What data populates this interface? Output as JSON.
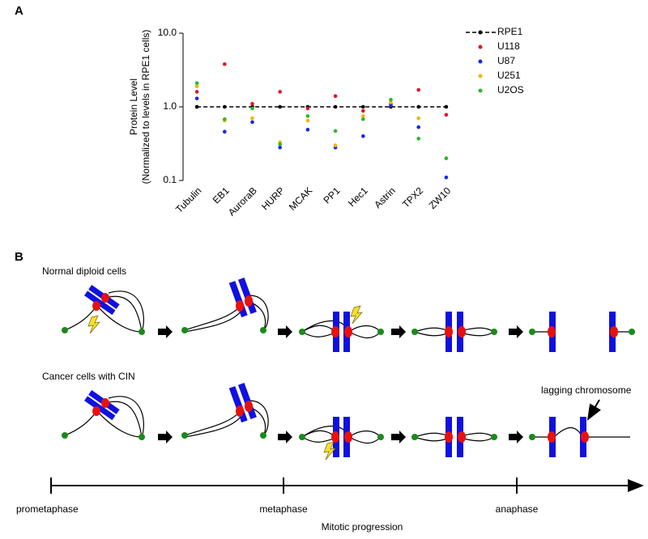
{
  "chart_data": {
    "type": "scatter",
    "panel_label": "A",
    "y_label": [
      "Protein Level",
      "(Normalized to levels in RPE1 cells)"
    ],
    "categories": [
      "Tubulin",
      "EB1",
      "AuroraB",
      "HURP",
      "MCAK",
      "PP1",
      "Hec1",
      "Astrin",
      "TPX2",
      "ZW10"
    ],
    "log_y": true,
    "ylim": [
      0.1,
      10
    ],
    "yticks": [
      0.1,
      {
        "value": 1,
        "label": "1.0"
      },
      {
        "value": 10,
        "label": "10.0"
      }
    ],
    "legend": "top-right",
    "series": [
      {
        "name": "RPE1",
        "color": "#000000",
        "style": "dashed-line",
        "values": [
          1,
          1,
          1,
          1,
          1,
          1,
          1,
          1,
          1,
          1
        ]
      },
      {
        "name": "U118",
        "color": "#e8141c",
        "values": [
          1.6,
          3.8,
          1.1,
          1.6,
          0.95,
          1.4,
          0.88,
          1.1,
          1.7,
          0.78
        ]
      },
      {
        "name": "U87",
        "color": "#1428e6",
        "values": [
          1.3,
          0.46,
          0.62,
          0.28,
          0.49,
          0.28,
          0.4,
          1.05,
          0.53,
          0.11
        ]
      },
      {
        "name": "U251",
        "color": "#f5b400",
        "values": [
          1.9,
          0.65,
          0.7,
          0.33,
          0.65,
          0.3,
          0.75,
          1.15,
          0.7,
          0.2
        ]
      },
      {
        "name": "U2OS",
        "color": "#2ab82a",
        "values": [
          2.1,
          0.68,
          0.95,
          0.31,
          0.75,
          0.47,
          0.68,
          1.25,
          0.37,
          0.2
        ]
      }
    ]
  },
  "panel_b": {
    "label": "B",
    "rows": [
      "Normal diploid cells",
      "Cancer cells with CIN"
    ],
    "annotation": "lagging chromosome",
    "stages": [
      "prometaphase",
      "metaphase",
      "anaphase"
    ],
    "axis_label": "Mitotic progression"
  }
}
